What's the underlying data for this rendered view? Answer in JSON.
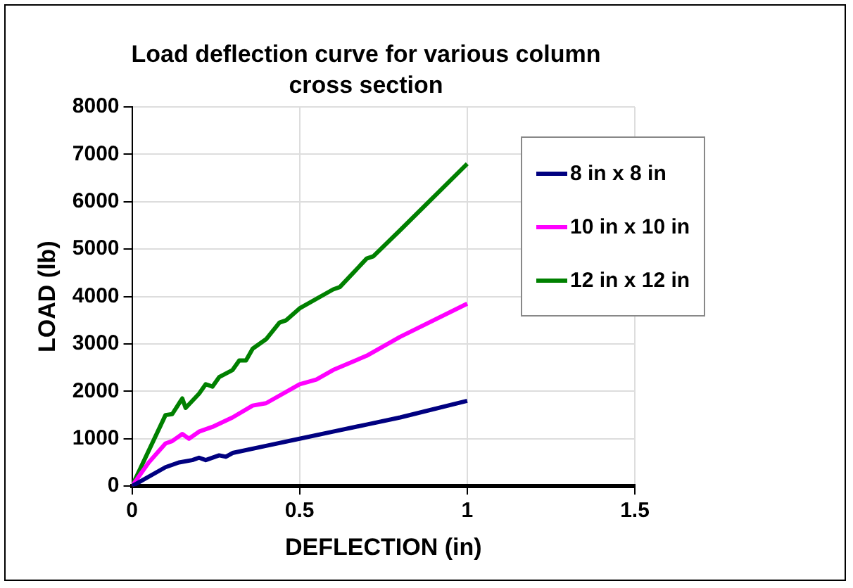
{
  "chart_data": {
    "type": "line",
    "title": "Load deflection curve for various column cross section",
    "xlabel": "DEFLECTION (in)",
    "ylabel": "LOAD (lb)",
    "xlim": [
      0,
      1.5
    ],
    "xticks": [
      0,
      0.5,
      1,
      1.5
    ],
    "ylim": [
      0,
      8000
    ],
    "yticks": [
      0,
      1000,
      2000,
      3000,
      4000,
      5000,
      6000,
      7000,
      8000
    ],
    "grid": true,
    "legend": "right",
    "marker": "none",
    "series": [
      {
        "name": "8 in x 8 in",
        "color": "#000080",
        "x": [
          0,
          0.1,
          0.14,
          0.18,
          0.2,
          0.22,
          0.26,
          0.28,
          0.3,
          0.4,
          0.5,
          0.6,
          0.7,
          0.8,
          1
        ],
        "values": [
          0,
          400,
          500,
          550,
          600,
          550,
          650,
          620,
          700,
          850,
          1000,
          1150,
          1300,
          1450,
          1800
        ]
      },
      {
        "name": "10 in x 10 in",
        "color": "#ff00ff",
        "x": [
          0,
          0.05,
          0.1,
          0.12,
          0.15,
          0.17,
          0.2,
          0.24,
          0.3,
          0.36,
          0.4,
          0.5,
          0.55,
          0.6,
          0.7,
          0.8,
          1
        ],
        "values": [
          0,
          500,
          900,
          950,
          1100,
          1000,
          1150,
          1250,
          1450,
          1700,
          1750,
          2150,
          2250,
          2450,
          2750,
          3150,
          3850
        ]
      },
      {
        "name": "12 in x 12 in",
        "color": "#008000",
        "x": [
          0,
          0.1,
          0.12,
          0.15,
          0.16,
          0.2,
          0.22,
          0.24,
          0.26,
          0.3,
          0.32,
          0.34,
          0.36,
          0.4,
          0.44,
          0.46,
          0.5,
          0.6,
          0.62,
          0.7,
          0.72,
          0.8,
          1
        ],
        "values": [
          0,
          1500,
          1520,
          1850,
          1650,
          1950,
          2150,
          2100,
          2300,
          2450,
          2650,
          2650,
          2900,
          3100,
          3450,
          3500,
          3750,
          4150,
          4200,
          4800,
          4850,
          5400,
          6800
        ]
      }
    ]
  }
}
